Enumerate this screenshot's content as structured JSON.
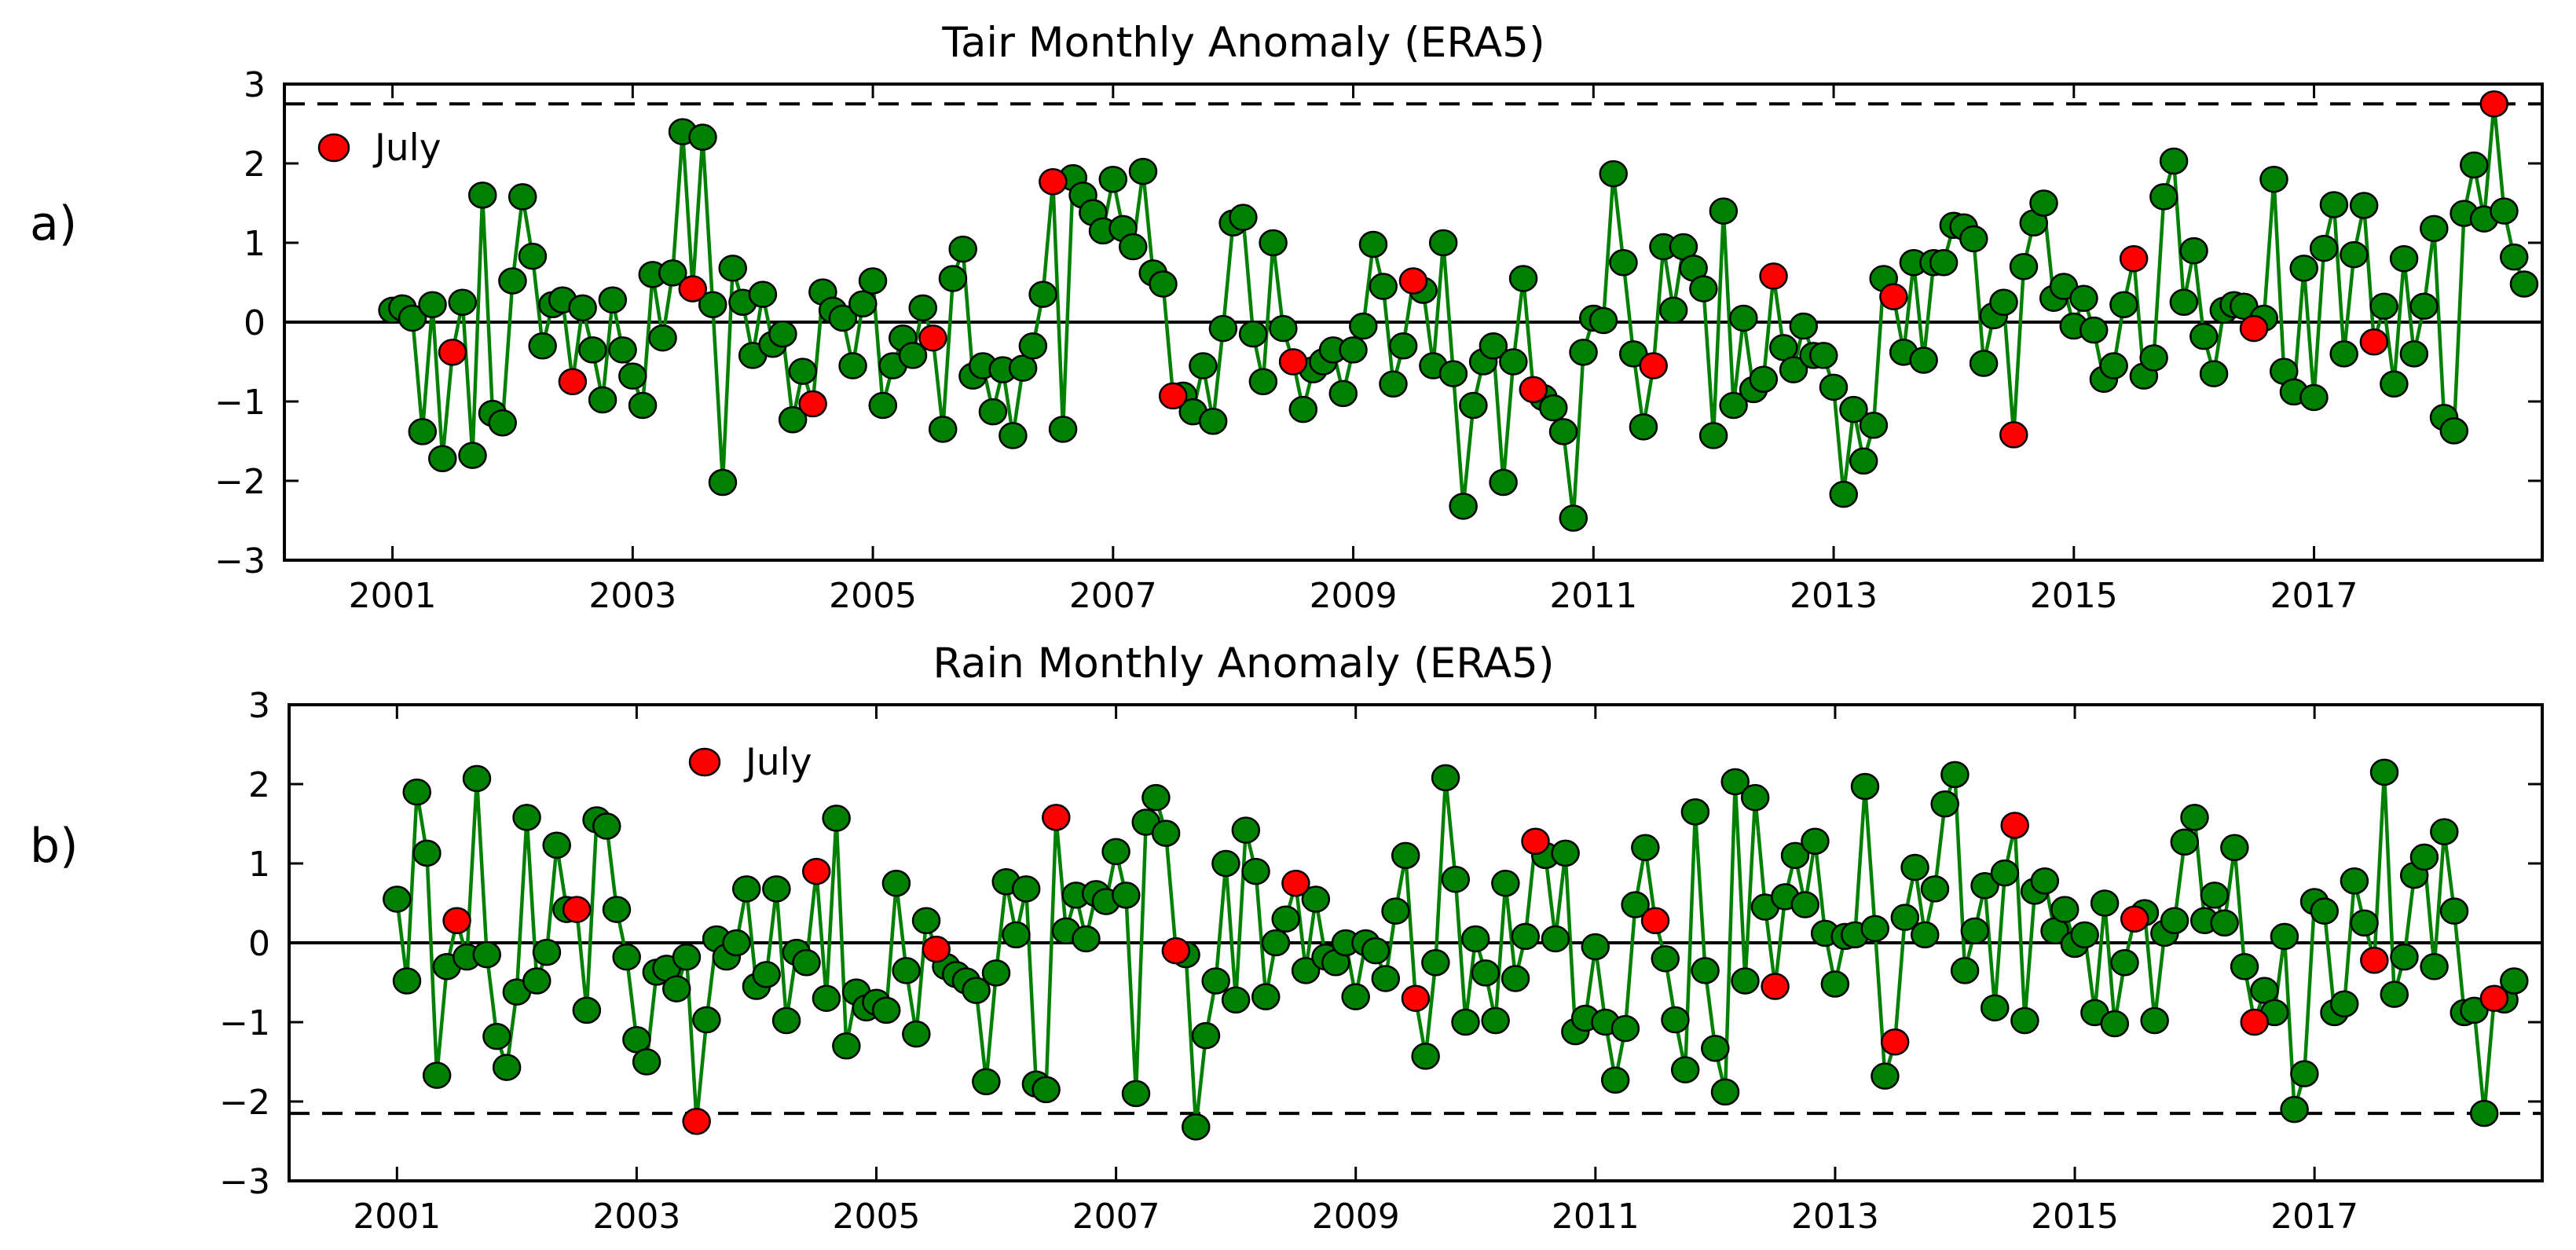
{
  "chart_data": [
    {
      "type": "line",
      "panel_label": "a)",
      "title": "Tair Monthly Anomaly (ERA5)",
      "xlabel": "",
      "ylabel": "",
      "x_tick_labels": [
        "2001",
        "2003",
        "2005",
        "2007",
        "2009",
        "2011",
        "2013",
        "2015",
        "2017"
      ],
      "x_ticks": [
        2001,
        2003,
        2005,
        2007,
        2009,
        2011,
        2013,
        2015,
        2017
      ],
      "y_tick_labels": [
        "−3",
        "−2",
        "−1",
        "0",
        "1",
        "2",
        "3"
      ],
      "y_ticks": [
        -3,
        -2,
        -1,
        0,
        1,
        2,
        3
      ],
      "xlim": [
        2000.1,
        2018.9
      ],
      "ylim": [
        -3,
        3
      ],
      "x_start": 2001.0,
      "x_step": 0.08333,
      "threshold": 2.75,
      "legend": {
        "label": "July",
        "position": "top-left",
        "color": "#ff0000"
      },
      "colors": {
        "line": "#008000",
        "marker": "#008000",
        "highlight": "#ff0000",
        "edge": "#000000"
      },
      "series": [
        {
          "values": [
            0.15,
            0.18,
            0.05,
            -1.38,
            0.22,
            -1.72,
            -0.38,
            0.25,
            -1.68,
            1.6,
            -1.15,
            -1.27,
            0.52,
            1.58,
            0.83,
            -0.3,
            0.22,
            0.28,
            -0.75,
            0.18,
            -0.35,
            -0.98,
            0.28,
            -0.35,
            -0.68,
            -1.05,
            0.6,
            -0.2,
            0.62,
            2.4,
            0.42,
            2.33,
            0.22,
            -2.02,
            0.68,
            0.25,
            -0.42,
            0.35,
            -0.28,
            -0.15,
            -1.23,
            -0.62,
            -1.03,
            0.38,
            0.15,
            0.05,
            -0.55,
            0.23,
            0.52,
            -1.05,
            -0.55,
            -0.2,
            -0.42,
            0.18,
            -0.2,
            -1.35,
            0.55,
            0.92,
            -0.68,
            -0.55,
            -1.13,
            -0.6,
            -1.43,
            -0.58,
            -0.3,
            0.35,
            1.77,
            -1.35,
            1.82,
            1.6,
            1.38,
            1.15,
            1.8,
            1.18,
            0.95,
            1.9,
            0.62,
            0.48,
            -0.93,
            -0.92,
            -1.13,
            -0.55,
            -1.25,
            -0.08,
            1.25,
            1.32,
            -0.15,
            -0.75,
            1.0,
            -0.08,
            -0.5,
            -1.1,
            -0.6,
            -0.5,
            -0.35,
            -0.9,
            -0.35,
            -0.05,
            0.98,
            0.45,
            -0.78,
            -0.3,
            0.52,
            0.4,
            -0.55,
            1.0,
            -0.65,
            -2.32,
            -1.05,
            -0.5,
            -0.3,
            -2.02,
            -0.5,
            0.55,
            -0.85,
            -0.95,
            -1.08,
            -1.38,
            -2.47,
            -0.38,
            0.05,
            0.02,
            1.87,
            0.75,
            -0.4,
            -1.32,
            -0.55,
            0.95,
            0.15,
            0.95,
            0.68,
            0.42,
            -1.43,
            1.4,
            -1.05,
            0.05,
            -0.85,
            -0.72,
            0.58,
            -0.32,
            -0.6,
            -0.05,
            -0.42,
            -0.42,
            -0.82,
            -2.17,
            -1.1,
            -1.75,
            -1.3,
            0.55,
            0.32,
            -0.38,
            0.75,
            -0.48,
            0.75,
            0.75,
            1.22,
            1.2,
            1.05,
            -0.52,
            0.08,
            0.25,
            -1.42,
            0.7,
            1.25,
            1.5,
            0.3,
            0.45,
            -0.05,
            0.3,
            -0.1,
            -0.72,
            -0.55,
            0.22,
            0.8,
            -0.68,
            -0.45,
            1.58,
            2.03,
            0.25,
            0.9,
            -0.18,
            -0.65,
            0.15,
            0.22,
            0.2,
            -0.08,
            0.05,
            1.8,
            -0.62,
            -0.88,
            0.68,
            -0.95,
            0.93,
            1.48,
            -0.4,
            0.85,
            1.47,
            -0.25,
            0.2,
            -0.78,
            0.8,
            -0.4,
            0.2,
            1.18,
            -1.2,
            -1.37,
            1.37,
            1.98,
            1.3,
            2.75,
            1.4,
            0.82,
            0.48
          ],
          "highlight_indices": [
            6,
            18,
            30,
            42,
            54,
            66,
            78,
            90,
            102,
            114,
            126,
            138,
            150,
            162,
            174,
            186,
            198,
            210
          ]
        }
      ]
    },
    {
      "type": "line",
      "panel_label": "b)",
      "title": "Rain Monthly Anomaly (ERA5)",
      "xlabel": "",
      "ylabel": "",
      "x_tick_labels": [
        "2001",
        "2003",
        "2005",
        "2007",
        "2009",
        "2011",
        "2013",
        "2015",
        "2017"
      ],
      "x_ticks": [
        2001,
        2003,
        2005,
        2007,
        2009,
        2011,
        2013,
        2015,
        2017
      ],
      "y_tick_labels": [
        "−3",
        "−2",
        "−1",
        "0",
        "1",
        "2",
        "3"
      ],
      "y_ticks": [
        -3,
        -2,
        -1,
        0,
        1,
        2,
        3
      ],
      "xlim": [
        2000.1,
        2018.9
      ],
      "ylim": [
        -3,
        3
      ],
      "x_start": 2001.0,
      "x_step": 0.08333,
      "threshold": -2.15,
      "legend": {
        "label": "July",
        "position": "top-center",
        "color": "#ff0000"
      },
      "colors": {
        "line": "#008000",
        "marker": "#008000",
        "highlight": "#ff0000",
        "edge": "#000000"
      },
      "series": [
        {
          "values": [
            0.55,
            -0.48,
            1.9,
            1.13,
            -1.67,
            -0.3,
            0.28,
            -0.18,
            2.07,
            -0.15,
            -1.18,
            -1.57,
            -0.62,
            1.58,
            -0.48,
            -0.12,
            1.23,
            0.42,
            0.42,
            -0.85,
            1.55,
            1.47,
            0.42,
            -0.18,
            -1.22,
            -1.5,
            -0.37,
            -0.32,
            -0.58,
            -0.18,
            -2.25,
            -0.97,
            0.05,
            -0.18,
            0.0,
            0.68,
            -0.55,
            -0.4,
            0.68,
            -0.98,
            -0.12,
            -0.25,
            0.9,
            -0.7,
            1.57,
            -1.3,
            -0.62,
            -0.82,
            -0.75,
            -0.85,
            0.75,
            -0.35,
            -1.15,
            0.28,
            -0.08,
            -0.3,
            -0.4,
            -0.48,
            -0.6,
            -1.75,
            -0.38,
            0.77,
            0.1,
            0.68,
            -1.78,
            -1.85,
            1.58,
            0.15,
            0.6,
            0.05,
            0.62,
            0.52,
            1.15,
            0.6,
            -1.9,
            1.52,
            1.83,
            1.38,
            -0.1,
            -0.15,
            -2.32,
            -1.17,
            -0.48,
            1.0,
            -0.72,
            1.42,
            0.9,
            -0.68,
            0.0,
            0.3,
            0.75,
            -0.35,
            0.55,
            -0.18,
            -0.25,
            0.0,
            -0.68,
            0.0,
            -0.1,
            -0.45,
            0.4,
            1.1,
            -0.7,
            -1.43,
            -0.25,
            2.08,
            0.8,
            -1.0,
            0.05,
            -0.38,
            -0.98,
            0.75,
            -0.45,
            0.08,
            1.28,
            1.1,
            0.05,
            1.13,
            -1.12,
            -0.95,
            -0.05,
            -1.0,
            -1.73,
            -1.08,
            0.48,
            1.2,
            0.28,
            -0.2,
            -0.97,
            -1.6,
            1.65,
            -0.35,
            -1.33,
            -1.88,
            2.03,
            -0.48,
            1.83,
            0.45,
            -0.55,
            0.58,
            1.1,
            0.48,
            1.28,
            0.12,
            -0.52,
            0.08,
            0.1,
            1.97,
            0.18,
            -1.68,
            -1.25,
            0.32,
            0.95,
            0.1,
            0.68,
            1.75,
            2.12,
            -0.35,
            0.15,
            0.72,
            -0.82,
            0.88,
            1.48,
            -0.98,
            0.65,
            0.78,
            0.15,
            0.42,
            -0.02,
            0.1,
            -0.88,
            0.5,
            -1.02,
            -0.25,
            0.3,
            0.38,
            -0.98,
            0.12,
            0.28,
            1.27,
            1.58,
            0.28,
            0.6,
            0.25,
            1.2,
            -0.3,
            -1.0,
            -0.6,
            -0.88,
            0.08,
            -2.1,
            -1.65,
            0.52,
            0.4,
            -0.88,
            -0.77,
            0.78,
            0.25,
            -0.22,
            2.15,
            -0.65,
            -0.18,
            0.85,
            1.08,
            -0.3,
            1.4,
            0.4,
            -0.88,
            -0.85,
            -2.15,
            -0.7,
            -0.72,
            -0.48
          ],
          "highlight_indices": [
            6,
            18,
            30,
            42,
            54,
            66,
            78,
            90,
            102,
            114,
            126,
            138,
            150,
            162,
            174,
            186,
            198,
            210
          ]
        }
      ]
    }
  ]
}
